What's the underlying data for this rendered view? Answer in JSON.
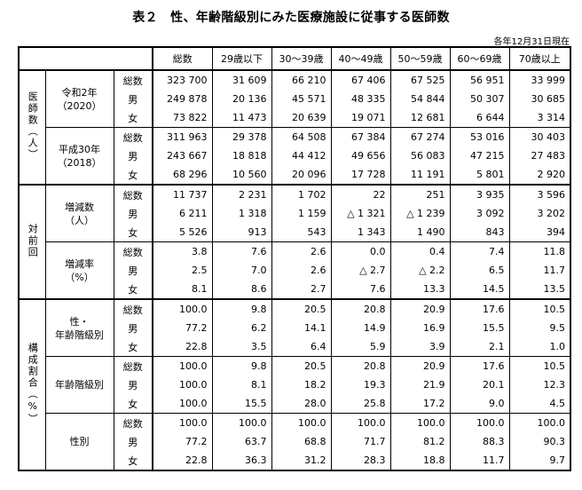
{
  "title": "表２　性、年齢階級別にみた医療施設に従事する医師数",
  "as_of": "各年12月31日現在",
  "columns": [
    "総数",
    "29歳以下",
    "30～39歳",
    "40～49歳",
    "50～59歳",
    "60～69歳",
    "70歳以上"
  ],
  "row_labels": [
    "総数",
    "男",
    "女"
  ],
  "sections": [
    {
      "label": "医師数（人）",
      "groups": [
        {
          "label": [
            "令和2年",
            "（2020）"
          ],
          "rows": [
            [
              "323 700",
              "31 609",
              "66 210",
              "67 406",
              "67 525",
              "56 951",
              "33 999"
            ],
            [
              "249 878",
              "20 136",
              "45 571",
              "48 335",
              "54 844",
              "50 307",
              "30 685"
            ],
            [
              "73 822",
              "11 473",
              "20 639",
              "19 071",
              "12 681",
              "6 644",
              "3 314"
            ]
          ]
        },
        {
          "label": [
            "平成30年",
            "（2018）"
          ],
          "rows": [
            [
              "311 963",
              "29 378",
              "64 508",
              "67 384",
              "67 274",
              "53 016",
              "30 403"
            ],
            [
              "243 667",
              "18 818",
              "44 412",
              "49 656",
              "56 083",
              "47 215",
              "27 483"
            ],
            [
              "68 296",
              "10 560",
              "20 096",
              "17 728",
              "11 191",
              "5 801",
              "2 920"
            ]
          ]
        }
      ]
    },
    {
      "label": "対前回",
      "groups": [
        {
          "label": [
            "増減数",
            "（人）"
          ],
          "rows": [
            [
              "11 737",
              "2 231",
              "1 702",
              "22",
              "251",
              "3 935",
              "3 596"
            ],
            [
              "6 211",
              "1 318",
              "1 159",
              "△ 1 321",
              "△ 1 239",
              "3 092",
              "3 202"
            ],
            [
              "5 526",
              "913",
              "543",
              "1 343",
              "1 490",
              "843",
              "394"
            ]
          ]
        },
        {
          "label": [
            "増減率",
            "（%）"
          ],
          "rows": [
            [
              "3.8",
              "7.6",
              "2.6",
              "0.0",
              "0.4",
              "7.4",
              "11.8"
            ],
            [
              "2.5",
              "7.0",
              "2.6",
              "△ 2.7",
              "△ 2.2",
              "6.5",
              "11.7"
            ],
            [
              "8.1",
              "8.6",
              "2.7",
              "7.6",
              "13.3",
              "14.5",
              "13.5"
            ]
          ]
        }
      ]
    },
    {
      "label": "構成割合（%）",
      "groups": [
        {
          "label": [
            "性・",
            "年齢階級別"
          ],
          "rows": [
            [
              "100.0",
              "9.8",
              "20.5",
              "20.8",
              "20.9",
              "17.6",
              "10.5"
            ],
            [
              "77.2",
              "6.2",
              "14.1",
              "14.9",
              "16.9",
              "15.5",
              "9.5"
            ],
            [
              "22.8",
              "3.5",
              "6.4",
              "5.9",
              "3.9",
              "2.1",
              "1.0"
            ]
          ]
        },
        {
          "label": [
            "年齢階級別"
          ],
          "rows": [
            [
              "100.0",
              "9.8",
              "20.5",
              "20.8",
              "20.9",
              "17.6",
              "10.5"
            ],
            [
              "100.0",
              "8.1",
              "18.2",
              "19.3",
              "21.9",
              "20.1",
              "12.3"
            ],
            [
              "100.0",
              "15.5",
              "28.0",
              "25.8",
              "17.2",
              "9.0",
              "4.5"
            ]
          ]
        },
        {
          "label": [
            "性別"
          ],
          "rows": [
            [
              "100.0",
              "100.0",
              "100.0",
              "100.0",
              "100.0",
              "100.0",
              "100.0"
            ],
            [
              "77.2",
              "63.7",
              "68.8",
              "71.7",
              "81.2",
              "88.3",
              "90.3"
            ],
            [
              "22.8",
              "36.3",
              "31.2",
              "28.3",
              "18.8",
              "11.7",
              "9.7"
            ]
          ]
        }
      ]
    }
  ]
}
